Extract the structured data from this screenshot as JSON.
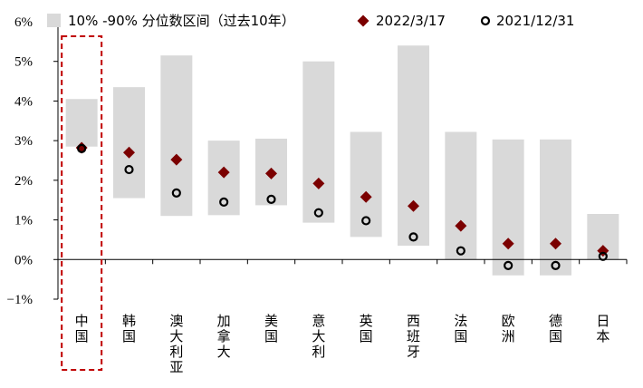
{
  "chart_data": {
    "type": "range-bar-with-markers",
    "ylim": [
      -1,
      6
    ],
    "yticks": [
      -1,
      0,
      1,
      2,
      3,
      4,
      5,
      6
    ],
    "ytick_labels": [
      "−1%",
      "0%",
      "1%",
      "2%",
      "3%",
      "4%",
      "5%",
      "6%"
    ],
    "categories": [
      "中国",
      "韩国",
      "澳大利亚",
      "加拿大",
      "美国",
      "意大利",
      "英国",
      "西班牙",
      "法国",
      "欧洲",
      "德国",
      "日本"
    ],
    "highlight_category": "中国",
    "series": [
      {
        "name": "10% -90% 分位数区间（过去10年）",
        "kind": "range",
        "color": "#d9d9d9",
        "low": [
          2.85,
          1.55,
          1.1,
          1.12,
          1.37,
          0.93,
          0.57,
          0.35,
          0.0,
          -0.4,
          -0.4,
          0.0
        ],
        "high": [
          4.05,
          4.35,
          5.15,
          3.0,
          3.05,
          5.0,
          3.22,
          5.4,
          3.22,
          3.03,
          3.03,
          1.15
        ]
      },
      {
        "name": "2022/3/17",
        "kind": "marker",
        "marker": "diamond",
        "color": "#7b0000",
        "values": [
          2.82,
          2.7,
          2.52,
          2.2,
          2.17,
          1.92,
          1.58,
          1.35,
          0.85,
          0.4,
          0.4,
          0.22
        ]
      },
      {
        "name": "2021/12/31",
        "kind": "marker",
        "marker": "circle",
        "color": "#000000",
        "values": [
          2.8,
          2.27,
          1.68,
          1.45,
          1.52,
          1.18,
          0.98,
          0.57,
          0.22,
          -0.15,
          -0.15,
          0.08
        ]
      }
    ]
  }
}
